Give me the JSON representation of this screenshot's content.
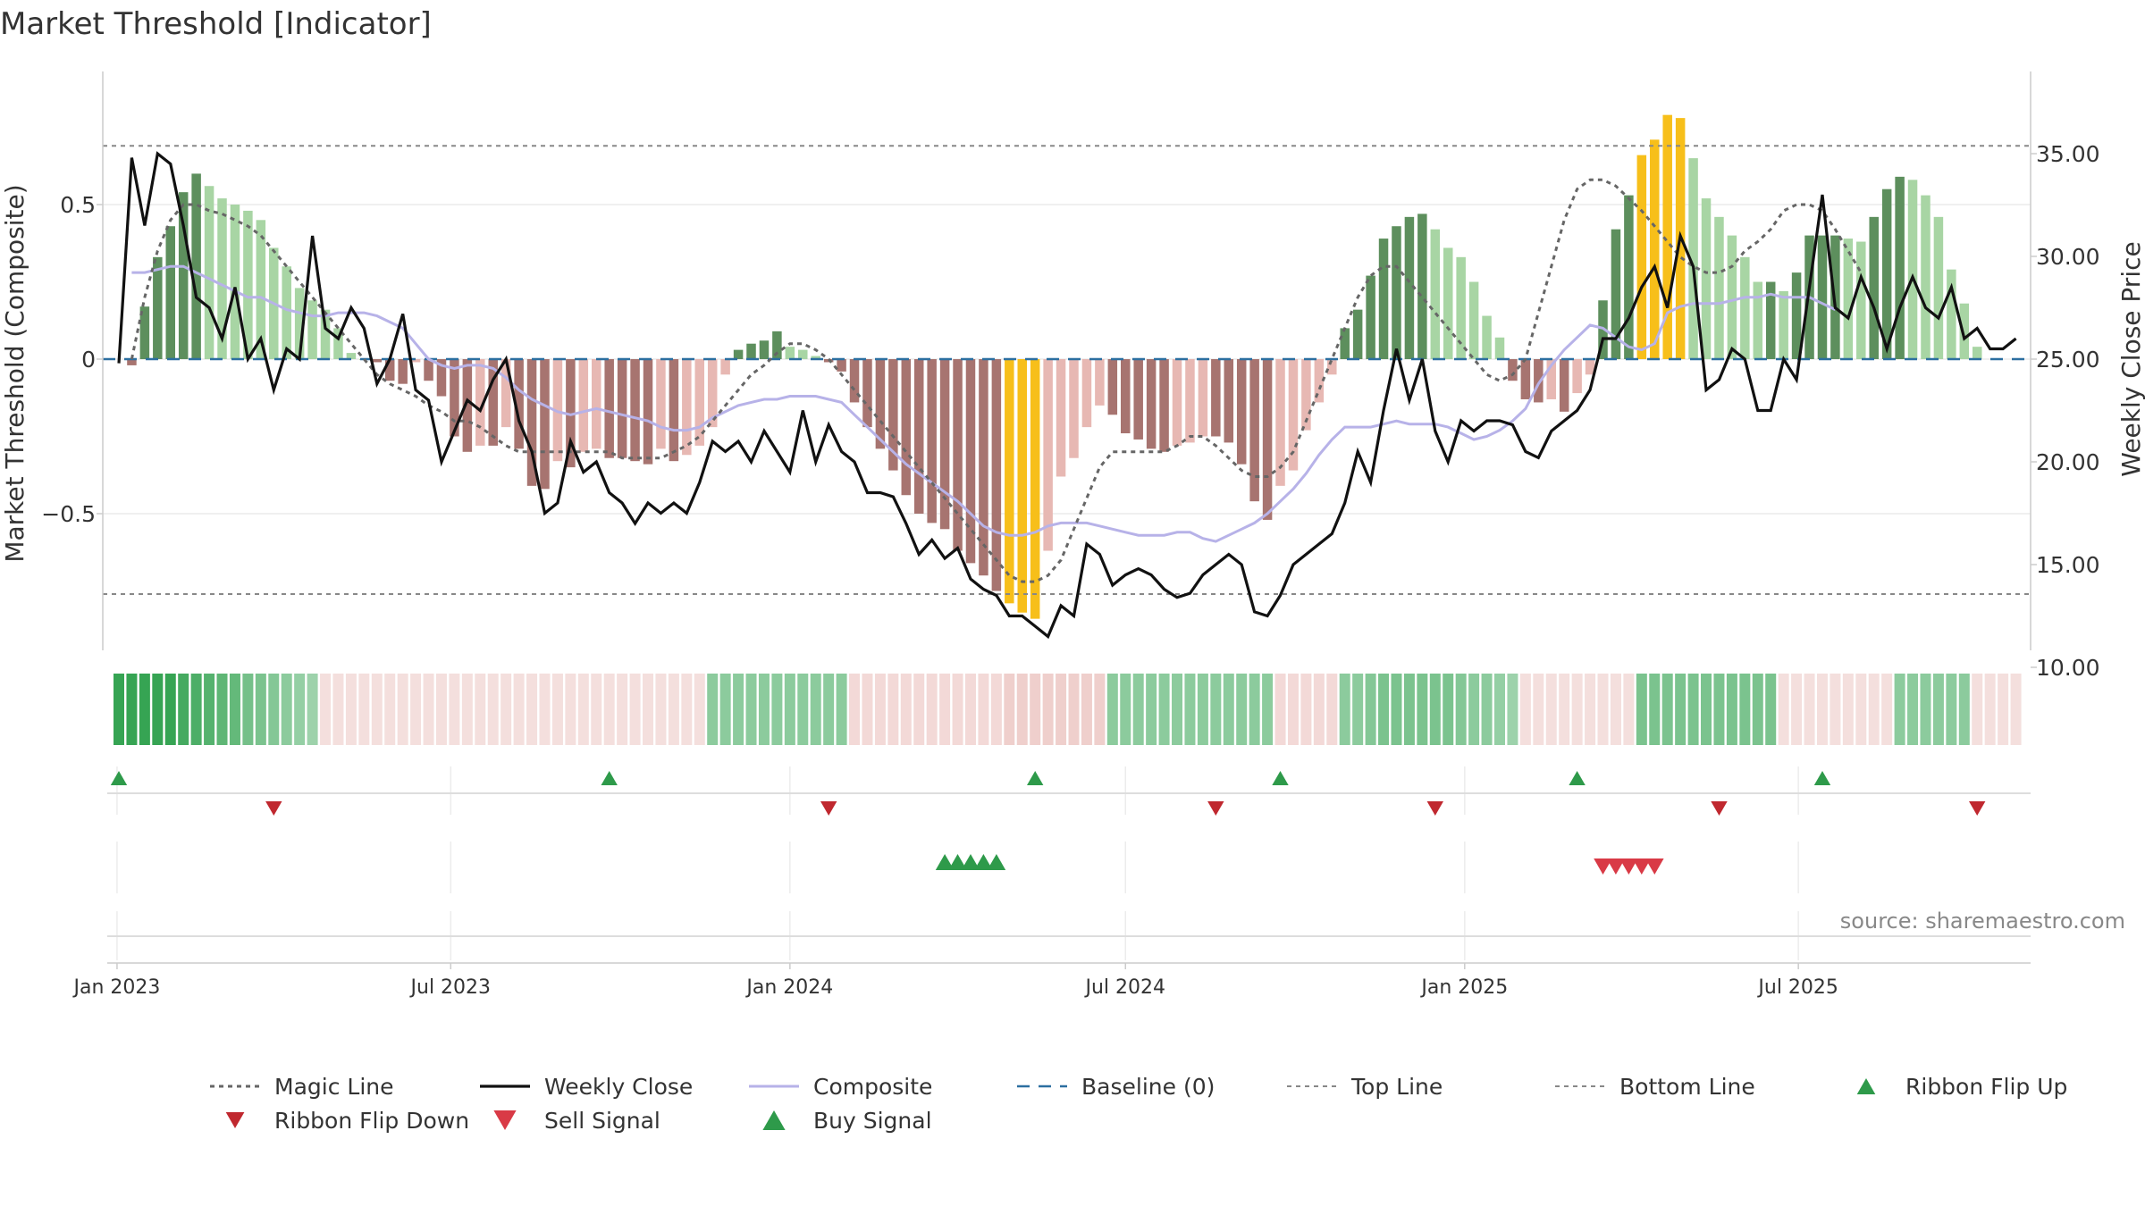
{
  "chart_data": {
    "title": "Market Threshold [Indicator]",
    "type": "bar",
    "x_ticks": [
      "Jan 2023",
      "Jul 2023",
      "Jan 2024",
      "Jul 2024",
      "Jan 2025",
      "Jul 2025"
    ],
    "y_left": {
      "label": "Market Threshold (Composite)",
      "ylim": [
        -0.93,
        0.93
      ],
      "ticks": [
        -0.5,
        0,
        0.5
      ],
      "tick_labels": [
        "−0.5",
        "0",
        "0.5"
      ]
    },
    "y_right": {
      "label": "Weekly Close Price",
      "ylim": [
        9.0,
        37.0
      ],
      "ticks": [
        10,
        15,
        20,
        25,
        30,
        35
      ],
      "tick_labels": [
        "10.00",
        "15.00",
        "20.00",
        "25.00",
        "30.00",
        "35.00"
      ]
    },
    "top_line": 0.69,
    "bottom_line": -0.76,
    "baseline": 0,
    "legend_position": "bottom",
    "annotation": "source: sharemaestro.com",
    "legend": [
      {
        "label": "Magic Line"
      },
      {
        "label": "Weekly Close"
      },
      {
        "label": "Composite"
      },
      {
        "label": "Baseline (0)"
      },
      {
        "label": "Top Line"
      },
      {
        "label": "Bottom Line"
      },
      {
        "label": "Ribbon Flip Up"
      },
      {
        "label": "Ribbon Flip Down"
      },
      {
        "label": "Sell Signal"
      },
      {
        "label": "Buy Signal"
      }
    ],
    "series": [
      {
        "name": "Composite (bars)",
        "kind": "bar",
        "week_start": 1,
        "values": [
          -0.02,
          0.17,
          0.33,
          0.43,
          0.54,
          0.6,
          0.56,
          0.52,
          0.5,
          0.48,
          0.45,
          0.36,
          0.3,
          0.23,
          0.19,
          0.16,
          0.1,
          0.02,
          0.0,
          -0.01,
          -0.07,
          -0.08,
          -0.01,
          -0.07,
          -0.12,
          -0.25,
          -0.3,
          -0.28,
          -0.28,
          -0.22,
          -0.29,
          -0.41,
          -0.42,
          -0.33,
          -0.35,
          -0.3,
          -0.29,
          -0.32,
          -0.32,
          -0.33,
          -0.34,
          -0.29,
          -0.33,
          -0.31,
          -0.28,
          -0.22,
          -0.05,
          0.03,
          0.05,
          0.06,
          0.09,
          0.04,
          0.03,
          0.01,
          -0.01,
          -0.04,
          -0.14,
          -0.22,
          -0.29,
          -0.36,
          -0.44,
          -0.5,
          -0.53,
          -0.55,
          -0.62,
          -0.66,
          -0.7,
          -0.75,
          -0.79,
          -0.82,
          -0.84,
          -0.62,
          -0.38,
          -0.32,
          -0.22,
          -0.15,
          -0.18,
          -0.24,
          -0.26,
          -0.29,
          -0.3,
          -0.28,
          -0.27,
          -0.25,
          -0.25,
          -0.27,
          -0.34,
          -0.46,
          -0.52,
          -0.41,
          -0.36,
          -0.23,
          -0.14,
          -0.05,
          0.1,
          0.16,
          0.27,
          0.39,
          0.43,
          0.46,
          0.47,
          0.42,
          0.36,
          0.33,
          0.25,
          0.14,
          0.07,
          -0.07,
          -0.13,
          -0.14,
          -0.13,
          -0.17,
          -0.11,
          -0.05,
          0.19,
          0.42,
          0.53,
          0.66,
          0.71,
          0.79,
          0.78,
          0.65,
          0.52,
          0.46,
          0.4,
          0.33,
          0.25,
          0.25,
          0.22,
          0.28,
          0.4,
          0.4,
          0.4,
          0.39,
          0.38,
          0.46,
          0.55,
          0.59,
          0.58,
          0.53,
          0.46,
          0.29,
          0.18,
          0.04
        ]
      },
      {
        "name": "Weekly Close",
        "kind": "line",
        "start": "2023-01-02",
        "values": [
          24.8,
          34.8,
          31.5,
          35.0,
          34.5,
          31.5,
          28.0,
          27.5,
          26.0,
          28.5,
          25.0,
          26.0,
          23.5,
          25.5,
          25.0,
          31.0,
          26.5,
          26.0,
          27.5,
          26.5,
          23.8,
          25.0,
          27.2,
          23.5,
          23.0,
          20.0,
          21.5,
          23.0,
          22.5,
          24.0,
          25.0,
          22.0,
          20.5,
          17.5,
          18.0,
          21.0,
          19.5,
          20.0,
          18.5,
          18.0,
          17.0,
          18.0,
          17.5,
          18.0,
          17.5,
          19.0,
          21.0,
          20.5,
          21.0,
          20.0,
          21.5,
          20.5,
          19.5,
          22.5,
          20.0,
          21.8,
          20.5,
          20.0,
          18.5,
          18.5,
          18.3,
          17.0,
          15.5,
          16.2,
          15.3,
          15.8,
          14.3,
          13.8,
          13.5,
          12.5,
          12.5,
          12.0,
          11.5,
          13.0,
          12.5,
          16.0,
          15.5,
          14.0,
          14.5,
          14.8,
          14.5,
          13.8,
          13.4,
          13.6,
          14.5,
          15.0,
          15.5,
          15.0,
          12.7,
          12.5,
          13.5,
          15.0,
          15.5,
          16.0,
          16.5,
          18.0,
          20.5,
          19.0,
          22.5,
          25.5,
          23.0,
          25.0,
          21.5,
          20.0,
          22.0,
          21.5,
          22.0,
          22.0,
          21.8,
          20.5,
          20.2,
          21.5,
          22.0,
          22.5,
          23.5,
          26.0,
          26.0,
          27.0,
          28.5,
          29.5,
          27.5,
          31.0,
          29.5,
          23.5,
          24.0,
          25.5,
          25.0,
          22.5,
          22.5,
          25.0,
          24.0,
          28.5,
          33.0,
          27.5,
          27.0,
          29.0,
          27.5,
          25.5,
          27.5,
          29.0,
          27.5,
          27.0,
          28.5,
          26.0,
          26.5,
          25.5,
          25.5,
          26.0
        ]
      },
      {
        "name": "Composite",
        "kind": "line",
        "week_start": 1,
        "values": [
          0.28,
          0.28,
          0.29,
          0.3,
          0.3,
          0.28,
          0.26,
          0.24,
          0.22,
          0.2,
          0.2,
          0.18,
          0.16,
          0.15,
          0.14,
          0.14,
          0.15,
          0.15,
          0.15,
          0.14,
          0.12,
          0.1,
          0.05,
          0.0,
          -0.02,
          -0.03,
          -0.02,
          -0.02,
          -0.03,
          -0.06,
          -0.1,
          -0.13,
          -0.15,
          -0.17,
          -0.18,
          -0.17,
          -0.16,
          -0.17,
          -0.18,
          -0.19,
          -0.2,
          -0.22,
          -0.23,
          -0.23,
          -0.22,
          -0.19,
          -0.17,
          -0.15,
          -0.14,
          -0.13,
          -0.13,
          -0.12,
          -0.12,
          -0.12,
          -0.13,
          -0.14,
          -0.18,
          -0.22,
          -0.26,
          -0.3,
          -0.34,
          -0.37,
          -0.4,
          -0.43,
          -0.46,
          -0.5,
          -0.54,
          -0.56,
          -0.57,
          -0.57,
          -0.56,
          -0.54,
          -0.53,
          -0.53,
          -0.53,
          -0.54,
          -0.55,
          -0.56,
          -0.57,
          -0.57,
          -0.57,
          -0.56,
          -0.56,
          -0.58,
          -0.59,
          -0.57,
          -0.55,
          -0.53,
          -0.5,
          -0.46,
          -0.42,
          -0.37,
          -0.31,
          -0.26,
          -0.22,
          -0.22,
          -0.22,
          -0.21,
          -0.2,
          -0.21,
          -0.21,
          -0.21,
          -0.22,
          -0.24,
          -0.26,
          -0.25,
          -0.23,
          -0.2,
          -0.16,
          -0.08,
          -0.02,
          0.03,
          0.07,
          0.11,
          0.1,
          0.07,
          0.04,
          0.03,
          0.05,
          0.15,
          0.17,
          0.18,
          0.18,
          0.18,
          0.19,
          0.2,
          0.2,
          0.21,
          0.2,
          0.2,
          0.2,
          0.18,
          0.16
        ]
      },
      {
        "name": "Magic Line",
        "kind": "line",
        "week_start": 1,
        "values": [
          0.0,
          0.2,
          0.35,
          0.45,
          0.5,
          0.5,
          0.48,
          0.47,
          0.45,
          0.43,
          0.4,
          0.35,
          0.3,
          0.25,
          0.2,
          0.15,
          0.1,
          0.05,
          0.0,
          -0.05,
          -0.08,
          -0.1,
          -0.12,
          -0.15,
          -0.17,
          -0.2,
          -0.2,
          -0.22,
          -0.25,
          -0.28,
          -0.3,
          -0.3,
          -0.3,
          -0.3,
          -0.3,
          -0.3,
          -0.3,
          -0.3,
          -0.32,
          -0.32,
          -0.32,
          -0.32,
          -0.3,
          -0.28,
          -0.25,
          -0.2,
          -0.15,
          -0.1,
          -0.05,
          -0.02,
          0.02,
          0.05,
          0.05,
          0.03,
          0.0,
          -0.05,
          -0.1,
          -0.15,
          -0.2,
          -0.25,
          -0.3,
          -0.35,
          -0.4,
          -0.45,
          -0.5,
          -0.55,
          -0.6,
          -0.65,
          -0.7,
          -0.72,
          -0.72,
          -0.7,
          -0.65,
          -0.55,
          -0.45,
          -0.35,
          -0.3,
          -0.3,
          -0.3,
          -0.3,
          -0.3,
          -0.28,
          -0.25,
          -0.25,
          -0.28,
          -0.32,
          -0.36,
          -0.38,
          -0.38,
          -0.35,
          -0.3,
          -0.2,
          -0.1,
          0.0,
          0.1,
          0.2,
          0.27,
          0.3,
          0.3,
          0.25,
          0.2,
          0.15,
          0.1,
          0.05,
          0.0,
          -0.05,
          -0.07,
          -0.05,
          0.0,
          0.15,
          0.3,
          0.45,
          0.55,
          0.58,
          0.58,
          0.56,
          0.52,
          0.48,
          0.43,
          0.38,
          0.33,
          0.3,
          0.28,
          0.28,
          0.3,
          0.35,
          0.38,
          0.42,
          0.48,
          0.5,
          0.5,
          0.48,
          0.42,
          0.35,
          0.28
        ]
      }
    ],
    "ribbon": [
      0.95,
      0.95,
      0.95,
      0.95,
      0.95,
      0.85,
      0.8,
      0.75,
      0.7,
      0.65,
      0.55,
      0.5,
      0.45,
      0.4,
      0.35,
      0.3,
      -0.3,
      -0.3,
      -0.3,
      -0.3,
      -0.3,
      -0.3,
      -0.3,
      -0.3,
      -0.3,
      -0.3,
      -0.3,
      -0.3,
      -0.3,
      -0.3,
      -0.3,
      -0.3,
      -0.3,
      -0.3,
      -0.3,
      -0.3,
      -0.3,
      -0.3,
      -0.3,
      -0.3,
      -0.3,
      -0.3,
      -0.3,
      -0.3,
      -0.3,
      -0.3,
      0.4,
      0.4,
      0.4,
      0.4,
      0.4,
      0.4,
      0.4,
      0.4,
      0.4,
      0.4,
      0.4,
      -0.35,
      -0.35,
      -0.35,
      -0.35,
      -0.35,
      -0.35,
      -0.35,
      -0.35,
      -0.35,
      -0.35,
      -0.35,
      -0.35,
      -0.45,
      -0.45,
      -0.45,
      -0.45,
      -0.45,
      -0.45,
      -0.45,
      -0.45,
      0.4,
      0.4,
      0.4,
      0.4,
      0.4,
      0.4,
      0.4,
      0.4,
      0.4,
      0.4,
      0.4,
      0.4,
      0.4,
      -0.35,
      -0.35,
      -0.35,
      -0.35,
      -0.35,
      0.4,
      0.4,
      0.45,
      0.5,
      0.5,
      0.5,
      0.5,
      0.5,
      0.5,
      0.45,
      0.4,
      0.4,
      0.35,
      0.3,
      -0.3,
      -0.3,
      -0.3,
      -0.3,
      -0.3,
      -0.3,
      -0.3,
      -0.3,
      -0.3,
      0.5,
      0.5,
      0.5,
      0.5,
      0.5,
      0.5,
      0.5,
      0.5,
      0.5,
      0.5,
      0.5,
      -0.3,
      -0.3,
      -0.3,
      -0.3,
      -0.3,
      -0.3,
      -0.3,
      -0.3,
      -0.3,
      0.4,
      0.4,
      0.4,
      0.4,
      0.4,
      0.4,
      -0.3,
      -0.3,
      -0.3,
      -0.3
    ],
    "ribbon_flip_up": [
      "2023-01-02",
      "2023-09-25",
      "2024-05-13",
      "2024-09-23",
      "2025-03-03",
      "2025-07-14"
    ],
    "ribbon_flip_down": [
      "2023-03-27",
      "2024-01-22",
      "2024-08-19",
      "2024-12-16",
      "2025-05-19",
      "2025-10-06"
    ],
    "buy_signals": [
      "2024-03-25",
      "2024-04-01",
      "2024-04-08",
      "2024-04-15",
      "2024-04-22"
    ],
    "sell_signals": [
      "2025-03-17",
      "2025-03-24",
      "2025-03-31",
      "2025-04-07",
      "2025-04-14"
    ]
  }
}
